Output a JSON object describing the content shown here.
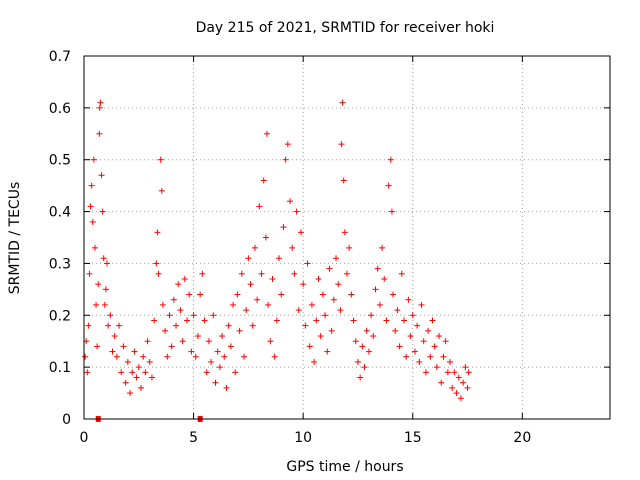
{
  "chart_data": {
    "type": "scatter",
    "title": "Day 215 of 2021, SRMTID for receiver hoki",
    "xlabel": "GPS time / hours",
    "ylabel": "SRMTID / TECUs",
    "xlim": [
      0,
      24
    ],
    "ylim": [
      0,
      0.7
    ],
    "xticks": [
      0,
      5,
      10,
      15,
      20
    ],
    "yticks": [
      0,
      0.1,
      0.2,
      0.3,
      0.4,
      0.5,
      0.6,
      0.7
    ],
    "xtick_labels": [
      "0",
      "5",
      "10",
      "15",
      "20"
    ],
    "ytick_labels": [
      "0",
      "0.1",
      "0.2",
      "0.3",
      "0.4",
      "0.5",
      "0.6",
      "0.7"
    ],
    "grid": true,
    "marker": "+",
    "color": "#ff0000",
    "gap_markers_x": [
      0.65,
      5.3
    ],
    "series": [
      {
        "name": "SRMTID",
        "points": [
          [
            0.05,
            0.12
          ],
          [
            0.1,
            0.15
          ],
          [
            0.15,
            0.09
          ],
          [
            0.2,
            0.18
          ],
          [
            0.25,
            0.28
          ],
          [
            0.3,
            0.41
          ],
          [
            0.35,
            0.45
          ],
          [
            0.4,
            0.38
          ],
          [
            0.45,
            0.5
          ],
          [
            0.5,
            0.33
          ],
          [
            0.55,
            0.22
          ],
          [
            0.6,
            0.14
          ],
          [
            0.65,
            0.26
          ],
          [
            0.7,
            0.55
          ],
          [
            0.72,
            0.6
          ],
          [
            0.75,
            0.61
          ],
          [
            0.8,
            0.47
          ],
          [
            0.85,
            0.4
          ],
          [
            0.9,
            0.31
          ],
          [
            0.95,
            0.22
          ],
          [
            1.0,
            0.25
          ],
          [
            1.05,
            0.3
          ],
          [
            1.1,
            0.18
          ],
          [
            1.2,
            0.2
          ],
          [
            1.3,
            0.13
          ],
          [
            1.4,
            0.16
          ],
          [
            1.5,
            0.12
          ],
          [
            1.6,
            0.18
          ],
          [
            1.7,
            0.09
          ],
          [
            1.8,
            0.14
          ],
          [
            1.9,
            0.07
          ],
          [
            2.0,
            0.11
          ],
          [
            2.1,
            0.05
          ],
          [
            2.2,
            0.09
          ],
          [
            2.3,
            0.13
          ],
          [
            2.4,
            0.08
          ],
          [
            2.5,
            0.1
          ],
          [
            2.6,
            0.06
          ],
          [
            2.7,
            0.12
          ],
          [
            2.8,
            0.09
          ],
          [
            2.9,
            0.15
          ],
          [
            3.0,
            0.11
          ],
          [
            3.1,
            0.08
          ],
          [
            3.2,
            0.19
          ],
          [
            3.3,
            0.3
          ],
          [
            3.35,
            0.36
          ],
          [
            3.4,
            0.28
          ],
          [
            3.5,
            0.5
          ],
          [
            3.55,
            0.44
          ],
          [
            3.6,
            0.22
          ],
          [
            3.7,
            0.17
          ],
          [
            3.8,
            0.12
          ],
          [
            3.9,
            0.2
          ],
          [
            4.0,
            0.14
          ],
          [
            4.1,
            0.23
          ],
          [
            4.2,
            0.18
          ],
          [
            4.3,
            0.26
          ],
          [
            4.4,
            0.21
          ],
          [
            4.5,
            0.15
          ],
          [
            4.6,
            0.27
          ],
          [
            4.7,
            0.19
          ],
          [
            4.8,
            0.24
          ],
          [
            4.9,
            0.13
          ],
          [
            5.0,
            0.2
          ],
          [
            5.1,
            0.12
          ],
          [
            5.2,
            0.16
          ],
          [
            5.3,
            0.24
          ],
          [
            5.4,
            0.28
          ],
          [
            5.5,
            0.19
          ],
          [
            5.6,
            0.09
          ],
          [
            5.7,
            0.15
          ],
          [
            5.8,
            0.11
          ],
          [
            5.9,
            0.2
          ],
          [
            6.0,
            0.07
          ],
          [
            6.1,
            0.13
          ],
          [
            6.2,
            0.1
          ],
          [
            6.3,
            0.16
          ],
          [
            6.4,
            0.12
          ],
          [
            6.5,
            0.06
          ],
          [
            6.6,
            0.18
          ],
          [
            6.7,
            0.14
          ],
          [
            6.8,
            0.22
          ],
          [
            6.9,
            0.09
          ],
          [
            7.0,
            0.24
          ],
          [
            7.1,
            0.17
          ],
          [
            7.2,
            0.28
          ],
          [
            7.3,
            0.12
          ],
          [
            7.4,
            0.21
          ],
          [
            7.5,
            0.31
          ],
          [
            7.6,
            0.26
          ],
          [
            7.7,
            0.18
          ],
          [
            7.8,
            0.33
          ],
          [
            7.9,
            0.23
          ],
          [
            8.0,
            0.41
          ],
          [
            8.1,
            0.28
          ],
          [
            8.2,
            0.46
          ],
          [
            8.3,
            0.35
          ],
          [
            8.35,
            0.55
          ],
          [
            8.4,
            0.22
          ],
          [
            8.5,
            0.15
          ],
          [
            8.6,
            0.27
          ],
          [
            8.7,
            0.12
          ],
          [
            8.8,
            0.19
          ],
          [
            8.9,
            0.31
          ],
          [
            9.0,
            0.24
          ],
          [
            9.1,
            0.37
          ],
          [
            9.2,
            0.5
          ],
          [
            9.3,
            0.53
          ],
          [
            9.4,
            0.42
          ],
          [
            9.5,
            0.33
          ],
          [
            9.6,
            0.28
          ],
          [
            9.7,
            0.4
          ],
          [
            9.8,
            0.21
          ],
          [
            9.9,
            0.36
          ],
          [
            10.0,
            0.26
          ],
          [
            10.1,
            0.18
          ],
          [
            10.2,
            0.3
          ],
          [
            10.3,
            0.14
          ],
          [
            10.4,
            0.22
          ],
          [
            10.5,
            0.11
          ],
          [
            10.6,
            0.19
          ],
          [
            10.7,
            0.27
          ],
          [
            10.8,
            0.16
          ],
          [
            10.9,
            0.24
          ],
          [
            11.0,
            0.2
          ],
          [
            11.1,
            0.13
          ],
          [
            11.2,
            0.29
          ],
          [
            11.3,
            0.17
          ],
          [
            11.4,
            0.23
          ],
          [
            11.5,
            0.31
          ],
          [
            11.6,
            0.26
          ],
          [
            11.7,
            0.21
          ],
          [
            11.75,
            0.53
          ],
          [
            11.8,
            0.61
          ],
          [
            11.85,
            0.46
          ],
          [
            11.9,
            0.36
          ],
          [
            12.0,
            0.28
          ],
          [
            12.1,
            0.33
          ],
          [
            12.2,
            0.24
          ],
          [
            12.3,
            0.19
          ],
          [
            12.4,
            0.15
          ],
          [
            12.5,
            0.11
          ],
          [
            12.6,
            0.08
          ],
          [
            12.7,
            0.14
          ],
          [
            12.8,
            0.1
          ],
          [
            12.9,
            0.17
          ],
          [
            13.0,
            0.13
          ],
          [
            13.1,
            0.2
          ],
          [
            13.2,
            0.16
          ],
          [
            13.3,
            0.25
          ],
          [
            13.4,
            0.29
          ],
          [
            13.5,
            0.22
          ],
          [
            13.6,
            0.33
          ],
          [
            13.7,
            0.27
          ],
          [
            13.8,
            0.19
          ],
          [
            13.9,
            0.45
          ],
          [
            14.0,
            0.5
          ],
          [
            14.05,
            0.4
          ],
          [
            14.1,
            0.24
          ],
          [
            14.2,
            0.17
          ],
          [
            14.3,
            0.21
          ],
          [
            14.4,
            0.14
          ],
          [
            14.5,
            0.28
          ],
          [
            14.6,
            0.19
          ],
          [
            14.7,
            0.12
          ],
          [
            14.8,
            0.23
          ],
          [
            14.9,
            0.16
          ],
          [
            15.0,
            0.2
          ],
          [
            15.1,
            0.13
          ],
          [
            15.2,
            0.18
          ],
          [
            15.3,
            0.11
          ],
          [
            15.4,
            0.22
          ],
          [
            15.5,
            0.15
          ],
          [
            15.6,
            0.09
          ],
          [
            15.7,
            0.17
          ],
          [
            15.8,
            0.12
          ],
          [
            15.9,
            0.19
          ],
          [
            16.0,
            0.14
          ],
          [
            16.1,
            0.1
          ],
          [
            16.2,
            0.16
          ],
          [
            16.3,
            0.07
          ],
          [
            16.4,
            0.12
          ],
          [
            16.5,
            0.15
          ],
          [
            16.6,
            0.09
          ],
          [
            16.7,
            0.11
          ],
          [
            16.8,
            0.06
          ],
          [
            16.9,
            0.09
          ],
          [
            17.0,
            0.05
          ],
          [
            17.1,
            0.08
          ],
          [
            17.2,
            0.04
          ],
          [
            17.3,
            0.07
          ],
          [
            17.4,
            0.1
          ],
          [
            17.5,
            0.06
          ],
          [
            17.55,
            0.09
          ]
        ]
      }
    ]
  }
}
